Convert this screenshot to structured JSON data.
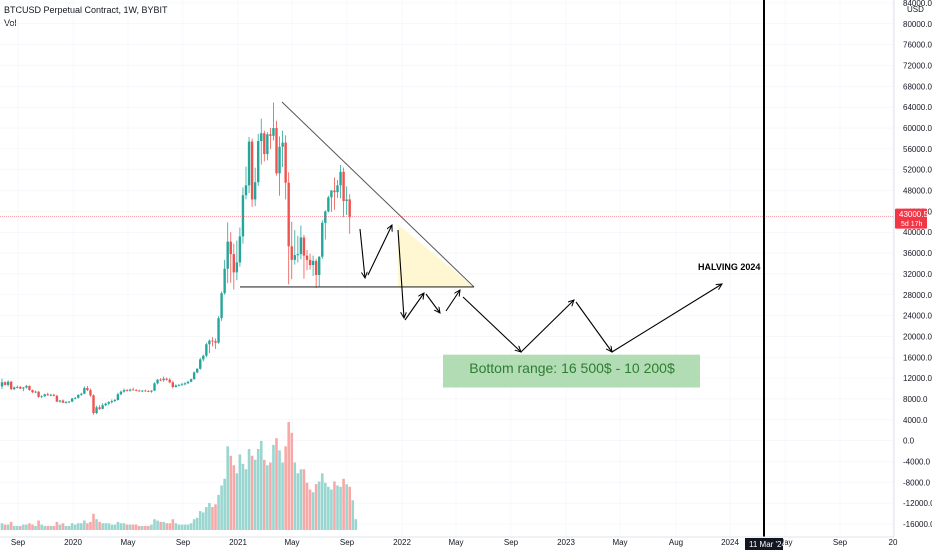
{
  "header": {
    "symbol_line": "BTCUSD Perpetual Contract, 1W, BYBIT",
    "volume_label": "Vol"
  },
  "price_axis": {
    "currency_label": "USD",
    "ticks": [
      "84000.0",
      "80000.0",
      "76000.0",
      "72000.0",
      "68000.0",
      "64000.0",
      "60000.0",
      "56000.0",
      "52000.0",
      "48000.0",
      "44000.0",
      "40000.0",
      "36000.0",
      "32000.0",
      "28000.0",
      "24000.0",
      "20000.0",
      "16000.0",
      "12000.0",
      "8000.0",
      "4000.0",
      "0.0",
      "-4000.0",
      "-8000.0",
      "-12000.0",
      "-16000.0"
    ],
    "current_price": "43000.5",
    "countdown": "5d 17h"
  },
  "time_axis": {
    "ticks": [
      "Sep",
      "2020",
      "May",
      "Sep",
      "2021",
      "May",
      "Sep",
      "2022",
      "May",
      "Sep",
      "2023",
      "May",
      "Aug",
      "2024",
      "May",
      "Sep",
      "20"
    ],
    "cursor_date": "11 Mar '24"
  },
  "annotations": {
    "halving": "HALVING 2024",
    "bottom_range": "Bottom range: 16 500$ - 10 200$"
  },
  "colors": {
    "up": "#26a69a",
    "down": "#ef5350",
    "volume_up": "#9ad6d0",
    "volume_down": "#f7a9a7",
    "price_line": "#f23645",
    "triangle_fill": "#fff6cc",
    "range_fill": "#a5d6a7",
    "range_text": "#2e7d32"
  },
  "chart_data": {
    "type": "candlestick",
    "x_axis": "weekly time",
    "y_unit": "USD",
    "candles": [
      {
        "o": 10400,
        "h": 11900,
        "l": 9900,
        "c": 11200
      },
      {
        "o": 11200,
        "h": 11400,
        "l": 10600,
        "c": 10700
      },
      {
        "o": 10700,
        "h": 11600,
        "l": 10400,
        "c": 11300
      },
      {
        "o": 11300,
        "h": 11500,
        "l": 9700,
        "c": 9900
      },
      {
        "o": 9900,
        "h": 10400,
        "l": 9700,
        "c": 10200
      },
      {
        "o": 10200,
        "h": 10600,
        "l": 10000,
        "c": 10300
      },
      {
        "o": 10300,
        "h": 10500,
        "l": 9900,
        "c": 10000
      },
      {
        "o": 10000,
        "h": 10300,
        "l": 9500,
        "c": 10200
      },
      {
        "o": 10200,
        "h": 10700,
        "l": 10000,
        "c": 10500
      },
      {
        "o": 10500,
        "h": 10600,
        "l": 9600,
        "c": 9700
      },
      {
        "o": 9700,
        "h": 9800,
        "l": 9100,
        "c": 9300
      },
      {
        "o": 9300,
        "h": 9600,
        "l": 9100,
        "c": 9400
      },
      {
        "o": 9400,
        "h": 9500,
        "l": 8200,
        "c": 8400
      },
      {
        "o": 8400,
        "h": 8700,
        "l": 8200,
        "c": 8500
      },
      {
        "o": 8500,
        "h": 9000,
        "l": 8400,
        "c": 8900
      },
      {
        "o": 8900,
        "h": 9200,
        "l": 8600,
        "c": 8700
      },
      {
        "o": 8700,
        "h": 9000,
        "l": 8500,
        "c": 8800
      },
      {
        "o": 8800,
        "h": 9000,
        "l": 8500,
        "c": 8600
      },
      {
        "o": 8600,
        "h": 8800,
        "l": 7400,
        "c": 7500
      },
      {
        "o": 7500,
        "h": 7800,
        "l": 7300,
        "c": 7700
      },
      {
        "o": 7700,
        "h": 7900,
        "l": 7200,
        "c": 7300
      },
      {
        "o": 7300,
        "h": 7600,
        "l": 7100,
        "c": 7400
      },
      {
        "o": 7400,
        "h": 7600,
        "l": 7200,
        "c": 7500
      },
      {
        "o": 7500,
        "h": 8200,
        "l": 7400,
        "c": 8100
      },
      {
        "o": 8100,
        "h": 8400,
        "l": 7900,
        "c": 8200
      },
      {
        "o": 8200,
        "h": 8900,
        "l": 8100,
        "c": 8800
      },
      {
        "o": 8800,
        "h": 9200,
        "l": 8600,
        "c": 9000
      },
      {
        "o": 9000,
        "h": 10400,
        "l": 8900,
        "c": 10100
      },
      {
        "o": 10100,
        "h": 10500,
        "l": 9500,
        "c": 9700
      },
      {
        "o": 9700,
        "h": 10000,
        "l": 8400,
        "c": 8700
      },
      {
        "o": 8700,
        "h": 8900,
        "l": 5000,
        "c": 5300
      },
      {
        "o": 5300,
        "h": 6700,
        "l": 5100,
        "c": 6400
      },
      {
        "o": 6400,
        "h": 6800,
        "l": 5900,
        "c": 6100
      },
      {
        "o": 6100,
        "h": 7200,
        "l": 6000,
        "c": 6800
      },
      {
        "o": 6800,
        "h": 7300,
        "l": 6600,
        "c": 7100
      },
      {
        "o": 7100,
        "h": 7600,
        "l": 6800,
        "c": 7400
      },
      {
        "o": 7400,
        "h": 7900,
        "l": 7100,
        "c": 7600
      },
      {
        "o": 7600,
        "h": 8000,
        "l": 7400,
        "c": 7800
      },
      {
        "o": 7800,
        "h": 9200,
        "l": 7700,
        "c": 8900
      },
      {
        "o": 8900,
        "h": 9600,
        "l": 8700,
        "c": 9400
      },
      {
        "o": 9400,
        "h": 10000,
        "l": 9200,
        "c": 9700
      },
      {
        "o": 9700,
        "h": 9900,
        "l": 9400,
        "c": 9600
      },
      {
        "o": 9600,
        "h": 10000,
        "l": 9400,
        "c": 9800
      },
      {
        "o": 9800,
        "h": 10200,
        "l": 9600,
        "c": 9700
      },
      {
        "o": 9700,
        "h": 9900,
        "l": 9500,
        "c": 9600
      },
      {
        "o": 9600,
        "h": 9800,
        "l": 9400,
        "c": 9500
      },
      {
        "o": 9500,
        "h": 9700,
        "l": 9300,
        "c": 9600
      },
      {
        "o": 9600,
        "h": 9800,
        "l": 9400,
        "c": 9500
      },
      {
        "o": 9500,
        "h": 9700,
        "l": 9300,
        "c": 9400
      },
      {
        "o": 9400,
        "h": 9700,
        "l": 9200,
        "c": 9600
      },
      {
        "o": 9600,
        "h": 11200,
        "l": 9500,
        "c": 11000
      },
      {
        "o": 11000,
        "h": 11800,
        "l": 10800,
        "c": 11700
      },
      {
        "o": 11700,
        "h": 12000,
        "l": 11400,
        "c": 11600
      },
      {
        "o": 11600,
        "h": 12300,
        "l": 11300,
        "c": 11900
      },
      {
        "o": 11900,
        "h": 12100,
        "l": 11500,
        "c": 11700
      },
      {
        "o": 11700,
        "h": 12000,
        "l": 11000,
        "c": 11200
      },
      {
        "o": 11200,
        "h": 11500,
        "l": 10000,
        "c": 10300
      },
      {
        "o": 10300,
        "h": 10800,
        "l": 10200,
        "c": 10600
      },
      {
        "o": 10600,
        "h": 10900,
        "l": 10400,
        "c": 10700
      },
      {
        "o": 10700,
        "h": 11100,
        "l": 10500,
        "c": 10800
      },
      {
        "o": 10800,
        "h": 11200,
        "l": 10600,
        "c": 11000
      },
      {
        "o": 11000,
        "h": 11500,
        "l": 10900,
        "c": 11300
      },
      {
        "o": 11300,
        "h": 11900,
        "l": 11200,
        "c": 11800
      },
      {
        "o": 11800,
        "h": 13300,
        "l": 11700,
        "c": 13100
      },
      {
        "o": 13100,
        "h": 13900,
        "l": 12900,
        "c": 13800
      },
      {
        "o": 13800,
        "h": 15900,
        "l": 13600,
        "c": 15600
      },
      {
        "o": 15600,
        "h": 16500,
        "l": 15200,
        "c": 16300
      },
      {
        "o": 16300,
        "h": 18800,
        "l": 16000,
        "c": 18500
      },
      {
        "o": 18500,
        "h": 19400,
        "l": 16800,
        "c": 19200
      },
      {
        "o": 19200,
        "h": 19900,
        "l": 18100,
        "c": 19100
      },
      {
        "o": 19100,
        "h": 19600,
        "l": 17600,
        "c": 18800
      },
      {
        "o": 18800,
        "h": 23900,
        "l": 18600,
        "c": 23500
      },
      {
        "o": 23500,
        "h": 28600,
        "l": 23000,
        "c": 28300
      },
      {
        "o": 28300,
        "h": 34700,
        "l": 28000,
        "c": 33000
      },
      {
        "o": 33000,
        "h": 41900,
        "l": 30200,
        "c": 38200
      },
      {
        "o": 38200,
        "h": 40000,
        "l": 30300,
        "c": 35800
      },
      {
        "o": 35800,
        "h": 37800,
        "l": 29000,
        "c": 32300
      },
      {
        "o": 32300,
        "h": 38400,
        "l": 30800,
        "c": 34200
      },
      {
        "o": 34200,
        "h": 40900,
        "l": 33400,
        "c": 39200
      },
      {
        "o": 39200,
        "h": 48600,
        "l": 37800,
        "c": 47100
      },
      {
        "o": 47100,
        "h": 52600,
        "l": 46300,
        "c": 49000
      },
      {
        "o": 49000,
        "h": 58300,
        "l": 47500,
        "c": 57400
      },
      {
        "o": 57400,
        "h": 58000,
        "l": 44900,
        "c": 46300
      },
      {
        "o": 46300,
        "h": 52400,
        "l": 45000,
        "c": 49600
      },
      {
        "o": 49600,
        "h": 58900,
        "l": 48900,
        "c": 57500
      },
      {
        "o": 57500,
        "h": 61800,
        "l": 53000,
        "c": 59000
      },
      {
        "o": 59000,
        "h": 59500,
        "l": 53600,
        "c": 55000
      },
      {
        "o": 55000,
        "h": 59200,
        "l": 53800,
        "c": 58800
      },
      {
        "o": 58800,
        "h": 60000,
        "l": 56000,
        "c": 58500
      },
      {
        "o": 58500,
        "h": 64900,
        "l": 57600,
        "c": 60000
      },
      {
        "o": 60000,
        "h": 61400,
        "l": 50900,
        "c": 51300
      },
      {
        "o": 51300,
        "h": 58400,
        "l": 47000,
        "c": 56400
      },
      {
        "o": 56400,
        "h": 59500,
        "l": 52500,
        "c": 57200
      },
      {
        "o": 57200,
        "h": 58600,
        "l": 46300,
        "c": 49500
      },
      {
        "o": 49500,
        "h": 51500,
        "l": 30000,
        "c": 37300
      },
      {
        "o": 37300,
        "h": 42000,
        "l": 31000,
        "c": 34700
      },
      {
        "o": 34700,
        "h": 40400,
        "l": 33800,
        "c": 35600
      },
      {
        "o": 35600,
        "h": 39300,
        "l": 34200,
        "c": 35800
      },
      {
        "o": 35800,
        "h": 41300,
        "l": 34800,
        "c": 39000
      },
      {
        "o": 39000,
        "h": 39500,
        "l": 31100,
        "c": 35500
      },
      {
        "o": 35500,
        "h": 36600,
        "l": 32700,
        "c": 34700
      },
      {
        "o": 34700,
        "h": 35900,
        "l": 32800,
        "c": 33700
      },
      {
        "o": 33700,
        "h": 35500,
        "l": 31600,
        "c": 34500
      },
      {
        "o": 34500,
        "h": 34900,
        "l": 29300,
        "c": 31800
      },
      {
        "o": 31800,
        "h": 35400,
        "l": 29500,
        "c": 35300
      },
      {
        "o": 35300,
        "h": 42300,
        "l": 34900,
        "c": 41800
      },
      {
        "o": 41800,
        "h": 44200,
        "l": 38600,
        "c": 44000
      },
      {
        "o": 44000,
        "h": 47000,
        "l": 43800,
        "c": 46700
      },
      {
        "o": 46700,
        "h": 48100,
        "l": 43900,
        "c": 48000
      },
      {
        "o": 48000,
        "h": 50500,
        "l": 44300,
        "c": 47700
      },
      {
        "o": 47700,
        "h": 50000,
        "l": 46600,
        "c": 49000
      },
      {
        "o": 49000,
        "h": 52900,
        "l": 46500,
        "c": 51600
      },
      {
        "o": 51600,
        "h": 52400,
        "l": 42900,
        "c": 46000
      },
      {
        "o": 46000,
        "h": 48800,
        "l": 43300,
        "c": 46300
      },
      {
        "o": 46300,
        "h": 47300,
        "l": 39700,
        "c": 43000
      }
    ],
    "volume": [
      0.05,
      0.04,
      0.04,
      0.06,
      0.03,
      0.03,
      0.03,
      0.04,
      0.04,
      0.05,
      0.04,
      0.03,
      0.07,
      0.04,
      0.03,
      0.03,
      0.03,
      0.03,
      0.06,
      0.04,
      0.05,
      0.03,
      0.03,
      0.05,
      0.04,
      0.05,
      0.05,
      0.07,
      0.05,
      0.06,
      0.12,
      0.08,
      0.06,
      0.05,
      0.05,
      0.05,
      0.04,
      0.04,
      0.06,
      0.05,
      0.05,
      0.04,
      0.04,
      0.04,
      0.04,
      0.03,
      0.03,
      0.03,
      0.03,
      0.04,
      0.08,
      0.07,
      0.06,
      0.06,
      0.05,
      0.05,
      0.08,
      0.05,
      0.04,
      0.04,
      0.04,
      0.04,
      0.05,
      0.08,
      0.09,
      0.14,
      0.13,
      0.17,
      0.2,
      0.17,
      0.19,
      0.26,
      0.33,
      0.38,
      0.62,
      0.55,
      0.48,
      0.42,
      0.56,
      0.49,
      0.45,
      0.6,
      0.55,
      0.52,
      0.6,
      0.66,
      0.52,
      0.48,
      0.5,
      0.63,
      0.68,
      0.59,
      0.5,
      0.62,
      0.8,
      0.72,
      0.5,
      0.42,
      0.45,
      0.45,
      0.35,
      0.3,
      0.28,
      0.34,
      0.36,
      0.42,
      0.35,
      0.32,
      0.3,
      0.36,
      0.33,
      0.32,
      0.38,
      0.34,
      0.32,
      0.22,
      0.08
    ],
    "trendlines": [
      {
        "label": "descending resistance",
        "from": {
          "price": 65000
        },
        "to": {
          "price": 29500
        }
      },
      {
        "label": "horizontal support",
        "price": 29500
      }
    ],
    "projected_path_prices": [
      43000,
      30500,
      42000,
      28800,
      24000,
      30000,
      26000,
      30000,
      24700,
      29500,
      17000,
      27000,
      16800,
      30500
    ],
    "bottom_range": {
      "low": 10200,
      "high": 16500
    },
    "ylim": [
      -16000,
      84000
    ]
  }
}
